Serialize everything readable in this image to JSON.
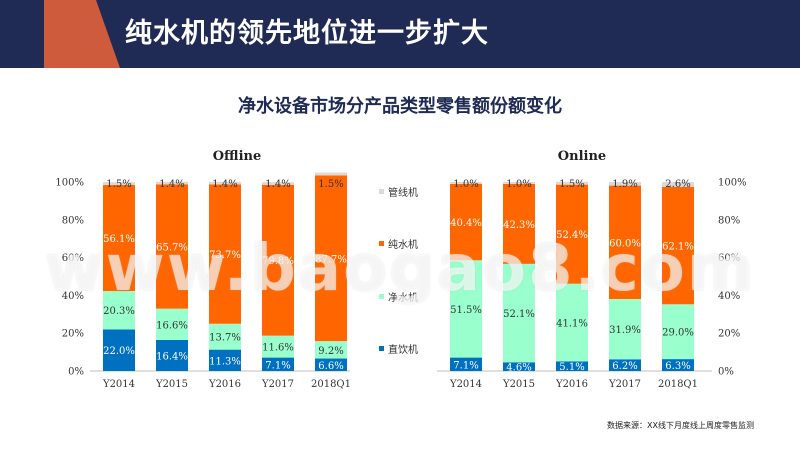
{
  "header": {
    "title": "纯水机的领先地位进一步扩大"
  },
  "subtitle": "净水设备市场分产品类型零售额份额变化",
  "source": "数据来源：XX线下月度线上周度零售监测",
  "watermark": "www.baogao8.com",
  "colors": {
    "header_bg": "#1f2a55",
    "accent": "#e0603a",
    "pipe": "#d9d9d9",
    "pure": "#ff6600",
    "purifier": "#99ffcc",
    "direct": "#0070c0"
  },
  "legend": {
    "items": [
      {
        "label": "管线机",
        "key": "pipe"
      },
      {
        "label": "纯水机",
        "key": "pure"
      },
      {
        "label": "净水机",
        "key": "purifier"
      },
      {
        "label": "直饮机",
        "key": "direct"
      }
    ]
  },
  "chart_data": [
    {
      "type": "bar",
      "stacked": true,
      "title": "Offline",
      "categories": [
        "Y2014",
        "Y2015",
        "Y2016",
        "Y2017",
        "2018Q1"
      ],
      "yticks": [
        "0%",
        "20%",
        "40%",
        "60%",
        "80%",
        "100%"
      ],
      "ylim": [
        0,
        100
      ],
      "series": [
        {
          "name": "直饮机",
          "color": "#0070c0",
          "values": [
            22.0,
            16.4,
            11.3,
            7.1,
            6.6
          ],
          "labels": [
            "22.0%",
            "16.4%",
            "11.3%",
            "7.1%",
            "6.6%"
          ]
        },
        {
          "name": "净水机",
          "color": "#99ffcc",
          "values": [
            20.3,
            16.6,
            13.7,
            11.6,
            9.2
          ],
          "labels": [
            "20.3%",
            "16.6%",
            "13.7%",
            "11.6%",
            "9.2%"
          ]
        },
        {
          "name": "纯水机",
          "color": "#ff6600",
          "values": [
            56.1,
            65.7,
            73.7,
            79.8,
            87.7
          ],
          "labels": [
            "56.1%",
            "65.7%",
            "73.7%",
            "79.8%",
            "87.7%"
          ]
        },
        {
          "name": "管线机",
          "color": "#d9d9d9",
          "values": [
            1.5,
            1.4,
            1.4,
            1.4,
            1.5
          ],
          "labels": [
            "1.5%",
            "1.4%",
            "1.4%",
            "1.4%",
            "1.5%"
          ]
        }
      ]
    },
    {
      "type": "bar",
      "stacked": true,
      "title": "Online",
      "categories": [
        "Y2014",
        "Y2015",
        "Y2016",
        "Y2017",
        "2018Q1"
      ],
      "yticks": [
        "0%",
        "20%",
        "40%",
        "60%",
        "80%",
        "100%"
      ],
      "ylim": [
        0,
        100
      ],
      "series": [
        {
          "name": "直饮机",
          "color": "#0070c0",
          "values": [
            7.1,
            4.6,
            5.1,
            6.2,
            6.3
          ],
          "labels": [
            "7.1%",
            "4.6%",
            "5.1%",
            "6.2%",
            "6.3%"
          ]
        },
        {
          "name": "净水机",
          "color": "#99ffcc",
          "values": [
            51.5,
            52.1,
            41.1,
            31.9,
            29.0
          ],
          "labels": [
            "51.5%",
            "52.1%",
            "41.1%",
            "31.9%",
            "29.0%"
          ]
        },
        {
          "name": "纯水机",
          "color": "#ff6600",
          "values": [
            40.4,
            42.3,
            52.4,
            60.0,
            62.1
          ],
          "labels": [
            "40.4%",
            "42.3%",
            "52.4%",
            "60.0%",
            "62.1%"
          ]
        },
        {
          "name": "管线机",
          "color": "#d9d9d9",
          "values": [
            1.0,
            1.0,
            1.5,
            1.9,
            2.6
          ],
          "labels": [
            "1.0%",
            "1.0%",
            "1.5%",
            "1.9%",
            "2.6%"
          ]
        }
      ]
    }
  ]
}
